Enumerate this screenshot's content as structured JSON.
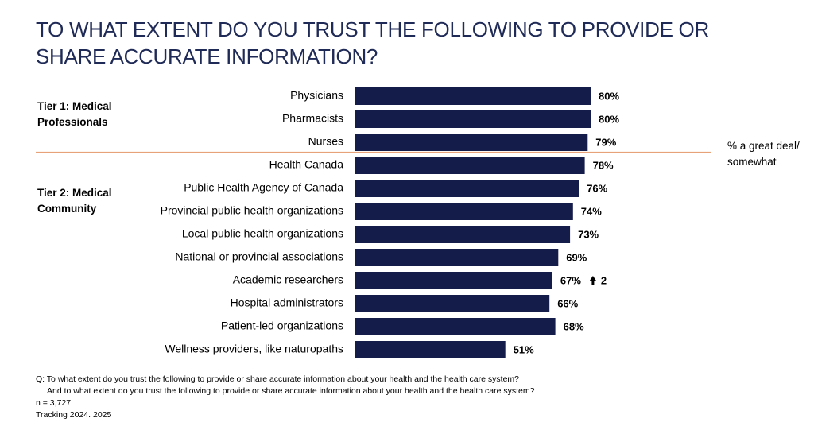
{
  "chart_data": {
    "type": "bar",
    "orientation": "horizontal",
    "title": "TO WHAT EXTENT DO YOU TRUST THE FOLLOWING TO PROVIDE OR SHARE ACCURATE INFORMATION?",
    "categories": [
      "Physicians",
      "Pharmacists",
      "Nurses",
      "Health Canada",
      "Public Health Agency of Canada",
      "Provincial public health organizations",
      "Local public health organizations",
      "National or provincial associations",
      "Academic researchers",
      "Hospital administrators",
      "Patient-led organizations",
      "Wellness providers, like naturopaths"
    ],
    "values": [
      80,
      80,
      79,
      78,
      76,
      74,
      73,
      69,
      67,
      66,
      68,
      51
    ],
    "value_labels": [
      "80%",
      "80%",
      "79%",
      "78%",
      "76%",
      "74%",
      "73%",
      "69%",
      "67%",
      "66%",
      "68%",
      "51%"
    ],
    "changes": [
      null,
      null,
      null,
      null,
      null,
      null,
      null,
      null,
      2,
      null,
      null,
      null
    ],
    "color": "#141c4a",
    "groups": [
      {
        "label": "Tier 1: Medical Professionals"
      },
      {
        "label": "Tier 2: Medical Community"
      }
    ],
    "measure_note": "% a great deal/ somewhat",
    "notes": [
      "Q: To what extent do you trust the following to provide or share accurate information about your health and the health care system?",
      "And to what extent do you trust the following to provide or share accurate information about your health and the health care system?",
      "n = 3,727",
      "Tracking 2024. 2025"
    ]
  }
}
